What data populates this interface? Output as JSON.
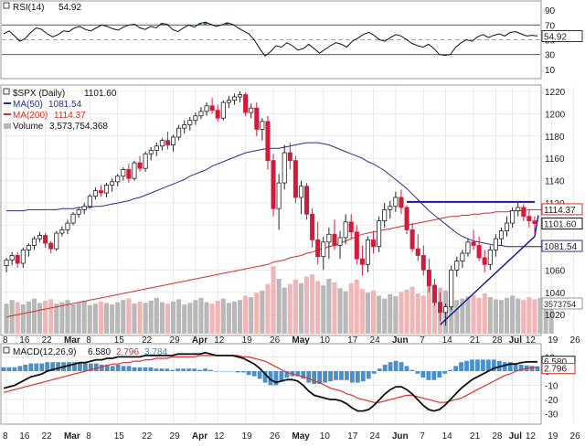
{
  "chart_data": {
    "type": "candlestick",
    "symbol_label": "$SPX (Daily)",
    "last_price": "1101.60",
    "rsi": {
      "label": "RSI(14)",
      "value": "54.92",
      "ticks": [
        90,
        70,
        50,
        30,
        10
      ],
      "ylim": [
        0,
        100
      ],
      "overbought": 70,
      "oversold": 30,
      "values": [
        58,
        62,
        55,
        48,
        52,
        60,
        66,
        64,
        58,
        54,
        57,
        62,
        61,
        66,
        68,
        64,
        62,
        66,
        70,
        68,
        65,
        63,
        67,
        70,
        71,
        66,
        64,
        68,
        66,
        72,
        71,
        64,
        61,
        66,
        70,
        67,
        72,
        74,
        71,
        68,
        70,
        73,
        71,
        66,
        62,
        58,
        50,
        38,
        28,
        34,
        42,
        40,
        46,
        42,
        36,
        38,
        44,
        38,
        32,
        37,
        42,
        46,
        44,
        40,
        48,
        52,
        57,
        60,
        56,
        50,
        48,
        53,
        57,
        55,
        50,
        45,
        42,
        40,
        44,
        38,
        30,
        29,
        30,
        40,
        46,
        50,
        48,
        54,
        57,
        53,
        56,
        58,
        55,
        60,
        61,
        58,
        55,
        56,
        55
      ],
      "value_label": "54.92"
    },
    "price": {
      "ticks": [
        1220,
        1200,
        1180,
        1160,
        1140,
        1120,
        1100,
        1080,
        1060,
        1040,
        1020
      ],
      "ylim": [
        1003,
        1224
      ],
      "candles": [
        [
          1064,
          1071,
          1058,
          1069
        ],
        [
          1069,
          1076,
          1064,
          1073
        ],
        [
          1073,
          1076,
          1062,
          1066
        ],
        [
          1066,
          1080,
          1062,
          1078
        ],
        [
          1078,
          1084,
          1072,
          1082
        ],
        [
          1082,
          1090,
          1078,
          1088
        ],
        [
          1088,
          1094,
          1085,
          1091
        ],
        [
          1091,
          1093,
          1080,
          1084
        ],
        [
          1084,
          1086,
          1075,
          1079
        ],
        [
          1079,
          1095,
          1077,
          1093
        ],
        [
          1093,
          1099,
          1090,
          1096
        ],
        [
          1096,
          1105,
          1092,
          1102
        ],
        [
          1102,
          1112,
          1100,
          1110
        ],
        [
          1110,
          1116,
          1107,
          1114
        ],
        [
          1114,
          1120,
          1110,
          1117
        ],
        [
          1117,
          1128,
          1115,
          1126
        ],
        [
          1126,
          1134,
          1123,
          1131
        ],
        [
          1131,
          1136,
          1126,
          1129
        ],
        [
          1129,
          1138,
          1125,
          1136
        ],
        [
          1136,
          1142,
          1130,
          1139
        ],
        [
          1139,
          1146,
          1135,
          1144
        ],
        [
          1144,
          1152,
          1140,
          1150
        ],
        [
          1150,
          1155,
          1138,
          1142
        ],
        [
          1142,
          1158,
          1140,
          1156
        ],
        [
          1156,
          1162,
          1148,
          1151
        ],
        [
          1151,
          1166,
          1148,
          1164
        ],
        [
          1164,
          1170,
          1158,
          1167
        ],
        [
          1167,
          1174,
          1162,
          1171
        ],
        [
          1171,
          1178,
          1167,
          1176
        ],
        [
          1176,
          1184,
          1168,
          1172
        ],
        [
          1172,
          1181,
          1166,
          1179
        ],
        [
          1179,
          1190,
          1176,
          1187
        ],
        [
          1187,
          1194,
          1182,
          1190
        ],
        [
          1190,
          1197,
          1185,
          1194
        ],
        [
          1194,
          1201,
          1190,
          1198
        ],
        [
          1198,
          1206,
          1195,
          1202
        ],
        [
          1202,
          1210,
          1198,
          1207
        ],
        [
          1207,
          1214,
          1200,
          1203
        ],
        [
          1203,
          1208,
          1193,
          1196
        ],
        [
          1196,
          1212,
          1194,
          1210
        ],
        [
          1210,
          1216,
          1205,
          1212
        ],
        [
          1212,
          1218,
          1208,
          1215
        ],
        [
          1215,
          1220,
          1210,
          1217
        ],
        [
          1217,
          1219,
          1198,
          1201
        ],
        [
          1201,
          1209,
          1196,
          1205
        ],
        [
          1205,
          1210,
          1180,
          1186
        ],
        [
          1186,
          1196,
          1176,
          1193
        ],
        [
          1193,
          1198,
          1150,
          1158
        ],
        [
          1158,
          1164,
          1108,
          1115
        ],
        [
          1115,
          1146,
          1096,
          1138
        ],
        [
          1138,
          1172,
          1132,
          1165
        ],
        [
          1165,
          1174,
          1150,
          1158
        ],
        [
          1158,
          1162,
          1120,
          1125
        ],
        [
          1125,
          1140,
          1110,
          1135
        ],
        [
          1135,
          1138,
          1105,
          1110
        ],
        [
          1110,
          1115,
          1080,
          1087
        ],
        [
          1087,
          1103,
          1065,
          1072
        ],
        [
          1072,
          1090,
          1060,
          1085
        ],
        [
          1085,
          1098,
          1070,
          1092
        ],
        [
          1092,
          1105,
          1078,
          1082
        ],
        [
          1082,
          1095,
          1070,
          1089
        ],
        [
          1089,
          1110,
          1083,
          1103
        ],
        [
          1103,
          1110,
          1088,
          1094
        ],
        [
          1094,
          1100,
          1065,
          1070
        ],
        [
          1070,
          1082,
          1055,
          1065
        ],
        [
          1065,
          1090,
          1058,
          1087
        ],
        [
          1087,
          1095,
          1075,
          1081
        ],
        [
          1081,
          1108,
          1076,
          1104
        ],
        [
          1104,
          1120,
          1098,
          1114
        ],
        [
          1114,
          1122,
          1106,
          1117
        ],
        [
          1117,
          1130,
          1112,
          1125
        ],
        [
          1125,
          1132,
          1110,
          1116
        ],
        [
          1116,
          1118,
          1092,
          1096
        ],
        [
          1096,
          1102,
          1076,
          1079
        ],
        [
          1079,
          1092,
          1068,
          1073
        ],
        [
          1073,
          1082,
          1055,
          1060
        ],
        [
          1060,
          1070,
          1040,
          1046
        ],
        [
          1046,
          1052,
          1028,
          1031
        ],
        [
          1031,
          1040,
          1014,
          1022
        ],
        [
          1022,
          1030,
          1010,
          1027
        ],
        [
          1027,
          1064,
          1024,
          1060
        ],
        [
          1060,
          1072,
          1054,
          1068
        ],
        [
          1068,
          1078,
          1062,
          1075
        ],
        [
          1075,
          1088,
          1072,
          1085
        ],
        [
          1085,
          1096,
          1078,
          1082
        ],
        [
          1082,
          1090,
          1068,
          1071
        ],
        [
          1071,
          1078,
          1058,
          1065
        ],
        [
          1065,
          1082,
          1060,
          1078
        ],
        [
          1078,
          1092,
          1072,
          1088
        ],
        [
          1088,
          1098,
          1082,
          1095
        ],
        [
          1095,
          1108,
          1090,
          1102
        ],
        [
          1102,
          1116,
          1098,
          1113
        ],
        [
          1113,
          1120,
          1108,
          1116
        ],
        [
          1116,
          1119,
          1104,
          1108
        ],
        [
          1108,
          1114,
          1098,
          1104
        ],
        [
          1104,
          1108,
          1092,
          1101.6
        ]
      ],
      "ma50": {
        "label": "MA(50)",
        "value": "1081.54",
        "value_label": "1081.54",
        "values": [
          1113,
          1113,
          1113,
          1113,
          1114,
          1114,
          1114,
          1114,
          1114,
          1114,
          1115,
          1115,
          1115,
          1116,
          1116,
          1116,
          1117,
          1117,
          1118,
          1119,
          1120,
          1121,
          1122,
          1124,
          1125,
          1127,
          1129,
          1131,
          1133,
          1135,
          1137,
          1139,
          1141,
          1144,
          1146,
          1148,
          1150,
          1153,
          1155,
          1157,
          1159,
          1161,
          1163,
          1165,
          1166,
          1167,
          1168,
          1169,
          1169,
          1169,
          1170,
          1171,
          1172,
          1173,
          1174,
          1174,
          1174,
          1173,
          1172,
          1170,
          1168,
          1166,
          1164,
          1162,
          1160,
          1157,
          1155,
          1152,
          1149,
          1145,
          1141,
          1137,
          1133,
          1128,
          1123,
          1118,
          1113,
          1109,
          1105,
          1101,
          1097,
          1093,
          1090,
          1088,
          1086,
          1085,
          1084,
          1083,
          1082,
          1082,
          1081,
          1081,
          1081,
          1081,
          1081,
          1081,
          1081,
          1081,
          1081.54
        ]
      },
      "ma200": {
        "label": "MA(200)",
        "value": "1114.37",
        "value_label": "1114.37",
        "values": [
          1018,
          1019,
          1020,
          1021,
          1022,
          1023,
          1024,
          1025,
          1026,
          1027,
          1028,
          1029,
          1030,
          1031,
          1032,
          1033,
          1034,
          1035,
          1036,
          1037,
          1038,
          1039,
          1040,
          1041,
          1042,
          1043,
          1044,
          1045,
          1046,
          1047,
          1048,
          1049,
          1050,
          1051,
          1052,
          1053,
          1054,
          1055,
          1056,
          1057,
          1058,
          1059,
          1060,
          1061,
          1062,
          1063,
          1064,
          1065,
          1067,
          1068,
          1069,
          1071,
          1072,
          1073,
          1075,
          1076,
          1078,
          1079,
          1081,
          1082,
          1084,
          1086,
          1088,
          1090,
          1092,
          1093,
          1094,
          1095,
          1096,
          1097,
          1098,
          1099,
          1100,
          1101,
          1102,
          1103,
          1104,
          1105,
          1106,
          1107,
          1108,
          1108,
          1109,
          1109,
          1110,
          1110,
          1111,
          1111,
          1112,
          1112,
          1112,
          1113,
          1113,
          1113,
          1114,
          1114,
          1114,
          1114,
          1114.37
        ]
      },
      "resistance_line": [
        1121,
        1121
      ],
      "support_triangle": [
        1011,
        1090
      ],
      "tag_value": "1101.60",
      "tag_value_2": "1114.37",
      "tag_value_3": "1081.54"
    },
    "volume": {
      "label": "Volume",
      "value": "3,573,754,368",
      "tag_value": "3573754",
      "values": [
        4.1,
        4.6,
        4.3,
        4.0,
        4.4,
        4.8,
        4.2,
        4.5,
        4.7,
        4.1,
        4.3,
        4.6,
        4.0,
        4.2,
        4.5,
        3.9,
        4.1,
        4.4,
        4.2,
        4.0,
        4.3,
        4.6,
        4.8,
        4.1,
        4.4,
        4.2,
        4.5,
        4.9,
        4.3,
        4.1,
        4.4,
        4.7,
        4.0,
        4.2,
        4.6,
        4.9,
        4.3,
        4.1,
        4.5,
        4.8,
        4.2,
        4.4,
        4.6,
        5.2,
        5.0,
        5.6,
        5.9,
        6.8,
        9.2,
        7.5,
        6.3,
        6.8,
        7.4,
        6.9,
        7.8,
        8.1,
        7.2,
        6.6,
        7.5,
        7.0,
        6.2,
        5.8,
        6.9,
        7.4,
        6.1,
        5.6,
        5.9,
        5.2,
        4.8,
        5.4,
        5.1,
        5.7,
        6.0,
        6.4,
        5.5,
        5.2,
        6.6,
        6.8,
        6.3,
        5.9,
        5.0,
        4.6,
        4.8,
        5.1,
        5.3,
        4.9,
        5.5,
        5.0,
        4.7,
        4.6,
        4.9,
        5.2,
        4.8,
        4.6,
        5.0,
        4.7,
        4.9,
        4.8,
        4.7
      ],
      "down_days": true
    },
    "macd": {
      "label": "MACD(12,26,9)",
      "macd_value": "6.580",
      "signal_value": "2.796",
      "hist_value": "3.784",
      "ticks": [
        10,
        0,
        -10,
        -20,
        -30
      ],
      "ylim": [
        -36,
        18
      ],
      "tag_value": "6.580",
      "tag_value_2": "2.796",
      "macd_line": [
        -12,
        -11,
        -10,
        -8,
        -6,
        -4,
        -3,
        -2,
        0,
        1,
        2,
        3,
        4,
        5,
        6,
        6,
        7,
        8,
        8,
        9,
        9,
        10,
        10,
        10,
        10,
        10,
        11,
        11,
        11,
        11,
        11,
        11,
        12,
        12,
        12,
        12,
        12,
        13,
        12,
        11,
        11,
        11,
        11,
        10,
        9,
        7,
        5,
        2,
        -2,
        -6,
        -8,
        -7,
        -6,
        -6,
        -7,
        -10,
        -14,
        -17,
        -18,
        -19,
        -20,
        -20,
        -21,
        -23,
        -26,
        -28,
        -28,
        -27,
        -24,
        -20,
        -16,
        -13,
        -11,
        -11,
        -13,
        -16,
        -20,
        -24,
        -27,
        -28,
        -27,
        -24,
        -20,
        -16,
        -12,
        -9,
        -6,
        -4,
        -2,
        0,
        2,
        3,
        4,
        5,
        5,
        6,
        6.5,
        6.58,
        6.58
      ],
      "signal_line": [
        -15,
        -14,
        -13,
        -12,
        -11,
        -10,
        -9,
        -8,
        -7,
        -6,
        -5,
        -4,
        -3,
        -2,
        -1,
        0,
        1,
        2,
        3,
        4,
        5,
        5,
        6,
        6,
        7,
        7,
        8,
        8,
        9,
        9,
        9,
        10,
        10,
        10,
        10,
        10,
        11,
        11,
        11,
        11,
        11,
        11,
        11,
        11,
        10,
        10,
        9,
        8,
        7,
        5,
        3,
        1,
        -1,
        -2,
        -3,
        -4,
        -5,
        -7,
        -8,
        -10,
        -12,
        -13,
        -14,
        -16,
        -17,
        -19,
        -20,
        -21,
        -22,
        -22,
        -21,
        -20,
        -19,
        -18,
        -17,
        -17,
        -18,
        -19,
        -20,
        -21,
        -22,
        -22,
        -21,
        -20,
        -19,
        -17,
        -15,
        -13,
        -11,
        -9,
        -7,
        -5,
        -3,
        -2,
        0,
        1,
        2,
        2.5,
        2.796
      ]
    },
    "x_labels": [
      {
        "label": "8",
        "i": 0
      },
      {
        "label": "16",
        "i": 3
      },
      {
        "label": "22",
        "i": 7
      },
      {
        "label": "Mar",
        "i": 11
      },
      {
        "label": "8",
        "i": 15
      },
      {
        "label": "15",
        "i": 20
      },
      {
        "label": "22",
        "i": 25
      },
      {
        "label": "29",
        "i": 30
      },
      {
        "label": "Apr",
        "i": 34
      },
      {
        "label": "12",
        "i": 38
      },
      {
        "label": "19",
        "i": 43
      },
      {
        "label": "26",
        "i": 48
      },
      {
        "label": "May",
        "i": 52
      },
      {
        "label": "10",
        "i": 57
      },
      {
        "label": "17",
        "i": 62
      },
      {
        "label": "24",
        "i": 66
      },
      {
        "label": "Jun",
        "i": 70
      },
      {
        "label": "7",
        "i": 75
      },
      {
        "label": "14",
        "i": 79
      },
      {
        "label": "21",
        "i": 84
      },
      {
        "label": "28",
        "i": 88
      },
      {
        "label": "Jul",
        "i": 91
      },
      {
        "label": "12",
        "i": 94
      },
      {
        "label": "19",
        "i": 98
      },
      {
        "label": "26",
        "i": 102
      }
    ],
    "colors": {
      "up": "#ffffff",
      "down": "#d41a3a",
      "candle_outline": "#222222",
      "ma50": "#2d2d8f",
      "ma200": "#d0312d",
      "rsi": "#111111",
      "rsi_fill": "#3a7a3a",
      "macd": "#111111",
      "signal": "#e03030",
      "hist": "#4a90c8",
      "volume": "#b8b8b8",
      "volume_down": "#f2b5b5",
      "trend": "#1a1a99",
      "grid": "#dddddd"
    }
  }
}
